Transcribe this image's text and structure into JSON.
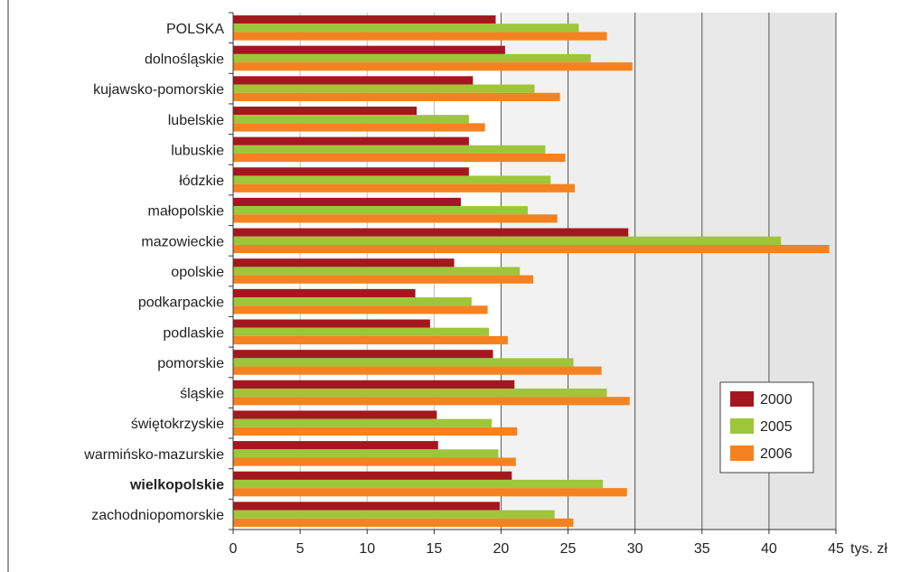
{
  "chart_data": {
    "type": "bar",
    "orientation": "horizontal",
    "unit_label": "tys. zł",
    "categories": [
      "POLSKA",
      "dolnośląskie",
      "kujawsko-pomorskie",
      "lubelskie",
      "lubuskie",
      "łódzkie",
      "małopolskie",
      "mazowieckie",
      "opolskie",
      "podkarpackie",
      "podlaskie",
      "pomorskie",
      "śląskie",
      "świętokrzyskie",
      "warmińsko-mazurskie",
      "wielkopolskie",
      "zachodniopomorskie"
    ],
    "highlighted_category": "wielkopolskie",
    "series": [
      {
        "name": "2000",
        "color": "#a5171f",
        "values": [
          19.6,
          20.3,
          17.9,
          13.7,
          17.6,
          17.6,
          17.0,
          29.5,
          16.5,
          13.6,
          14.7,
          19.4,
          21.0,
          15.2,
          15.3,
          20.8,
          19.9
        ]
      },
      {
        "name": "2005",
        "color": "#9dc63b",
        "values": [
          25.8,
          26.7,
          22.5,
          17.6,
          23.3,
          23.7,
          22.0,
          40.9,
          21.4,
          17.8,
          19.1,
          25.4,
          27.9,
          19.3,
          19.8,
          27.6,
          24.0
        ]
      },
      {
        "name": "2006",
        "color": "#f58220",
        "values": [
          27.9,
          29.8,
          24.4,
          18.8,
          24.8,
          25.5,
          24.2,
          44.5,
          22.4,
          19.0,
          20.5,
          27.5,
          29.6,
          21.2,
          21.1,
          29.4,
          25.4
        ]
      }
    ],
    "xlim": [
      0,
      45
    ],
    "xticks": [
      0,
      5,
      10,
      15,
      20,
      25,
      30,
      35,
      40,
      45
    ],
    "grid": "vertical",
    "legend": "bottom-right"
  }
}
